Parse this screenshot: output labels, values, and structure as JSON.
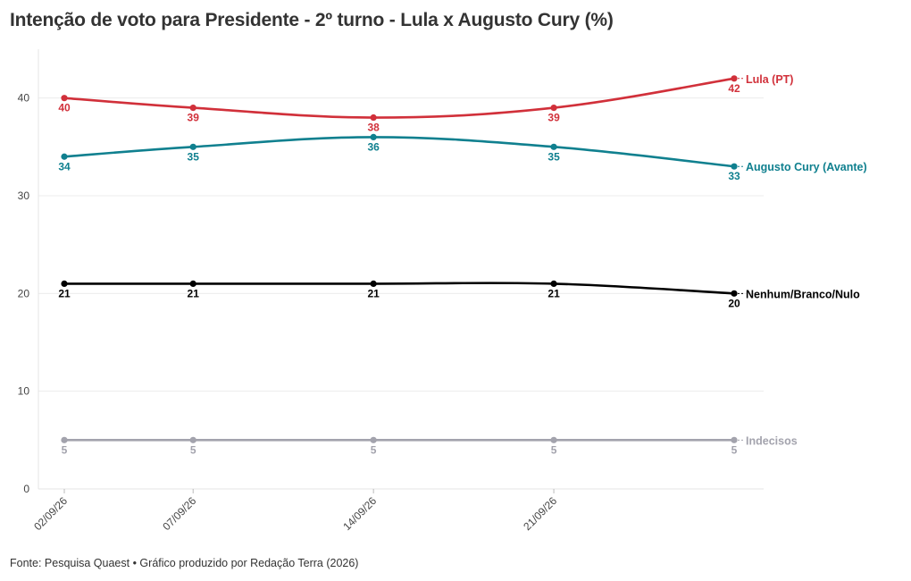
{
  "title": "Intenção de voto para Presidente - 2º turno - Lula x Augusto Cury (%)",
  "source": "Fonte: Pesquisa Quaest • Gráfico produzido por Redação Terra (2026)",
  "chart_data": {
    "type": "line",
    "x": [
      "2026-09-02",
      "2026-09-07",
      "2026-09-14",
      "2026-09-21",
      "2026-09-28"
    ],
    "x_tick_labels": [
      "02/09/26",
      "07/09/26",
      "14/09/26",
      "21/09/26"
    ],
    "ylim": [
      0,
      45
    ],
    "y_ticks": [
      0,
      10,
      20,
      30,
      40
    ],
    "grid": true,
    "series": [
      {
        "name": "Lula (PT)",
        "color": "#d1303a",
        "values": [
          40,
          39,
          38,
          39,
          42
        ],
        "label_position": "below"
      },
      {
        "name": "Augusto Cury (Avante)",
        "color": "#10808f",
        "values": [
          34,
          35,
          36,
          35,
          33
        ],
        "label_position": "below"
      },
      {
        "name": "Nenhum/Branco/Nulo",
        "color": "#000000",
        "values": [
          21,
          21,
          21,
          21,
          20
        ],
        "label_position": "below"
      },
      {
        "name": "Indecisos",
        "color": "#a3a3ad",
        "values": [
          5,
          5,
          5,
          5,
          5
        ],
        "label_position": "below"
      }
    ]
  }
}
